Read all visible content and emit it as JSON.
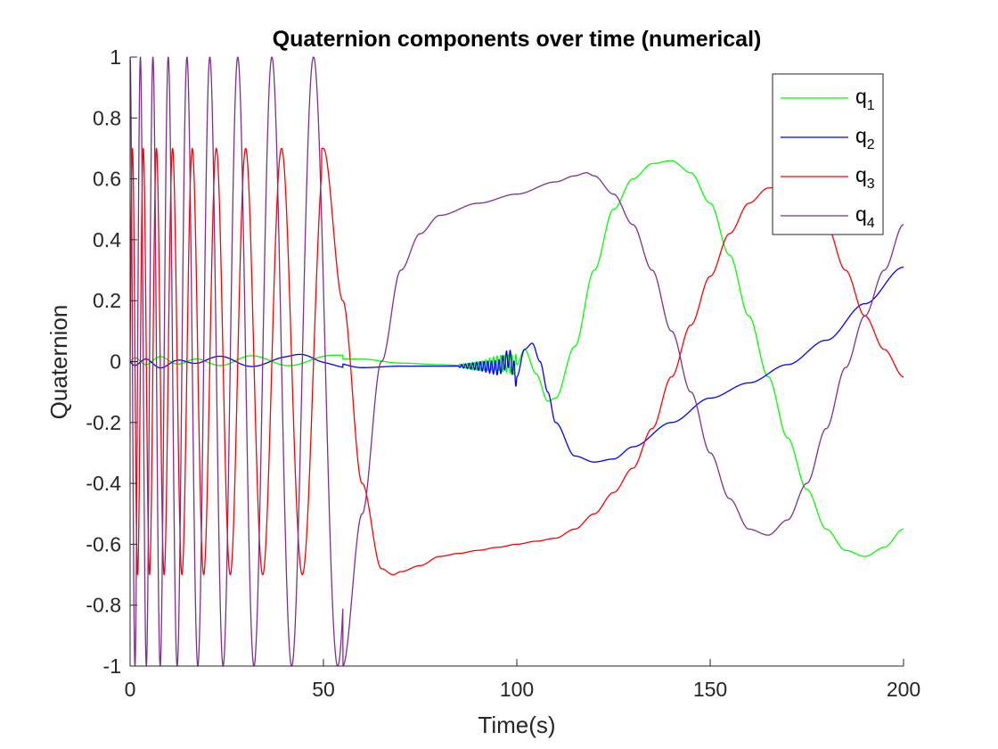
{
  "chart_data": {
    "type": "line",
    "title": "Quaternion components over time (numerical)",
    "xlabel": "Time(s)",
    "ylabel": "Quaternion",
    "xlim": [
      0,
      200
    ],
    "ylim": [
      -1,
      1
    ],
    "xticks": [
      0,
      50,
      100,
      150,
      200
    ],
    "yticks": [
      -1,
      -0.8,
      -0.6,
      -0.4,
      -0.2,
      0,
      0.2,
      0.4,
      0.6,
      0.8,
      1
    ],
    "xtick_labels": [
      "0",
      "50",
      "100",
      "150",
      "200"
    ],
    "ytick_labels": [
      "-1",
      "-0.8",
      "-0.6",
      "-0.4",
      "-0.2",
      "0",
      "0.2",
      "0.4",
      "0.6",
      "0.8",
      "1"
    ],
    "grid": false,
    "legend_position": "top-right",
    "series": [
      {
        "name": "q1",
        "label_base": "q",
        "label_sub": "1",
        "color": "#00ff00",
        "x": [
          0,
          10,
          20,
          30,
          40,
          50,
          60,
          70,
          80,
          90,
          95,
          100,
          102,
          105,
          108,
          110,
          115,
          120,
          125,
          130,
          135,
          140,
          145,
          150,
          155,
          160,
          165,
          170,
          175,
          180,
          185,
          190,
          195,
          200
        ],
        "y": [
          0,
          0.005,
          -0.005,
          0.008,
          -0.002,
          0.01,
          0.008,
          -0.005,
          -0.01,
          -0.015,
          -0.005,
          -0.01,
          0.04,
          -0.04,
          -0.13,
          -0.12,
          0.05,
          0.3,
          0.5,
          0.6,
          0.65,
          0.66,
          0.62,
          0.52,
          0.35,
          0.15,
          -0.05,
          -0.25,
          -0.42,
          -0.55,
          -0.62,
          -0.64,
          -0.61,
          -0.55
        ]
      },
      {
        "name": "q2",
        "label_base": "q",
        "label_sub": "2",
        "color": "#0000ff",
        "x": [
          0,
          10,
          20,
          30,
          40,
          45,
          50,
          60,
          70,
          80,
          90,
          95,
          98,
          100,
          102,
          104,
          106,
          108,
          110,
          115,
          120,
          125,
          130,
          140,
          150,
          160,
          170,
          180,
          190,
          200
        ],
        "y": [
          0,
          -0.01,
          0.01,
          -0.005,
          0.005,
          0.015,
          0.005,
          -0.02,
          -0.015,
          -0.015,
          -0.015,
          -0.02,
          0.01,
          -0.05,
          0.04,
          0.06,
          0.0,
          -0.1,
          -0.2,
          -0.31,
          -0.33,
          -0.32,
          -0.28,
          -0.2,
          -0.12,
          -0.07,
          -0.01,
          0.07,
          0.19,
          0.31
        ]
      },
      {
        "name": "q3",
        "label_base": "q",
        "label_sub": "3",
        "color": "#ff0000",
        "x": [
          0,
          50,
          55,
          60,
          65,
          68,
          70,
          75,
          80,
          85,
          90,
          95,
          100,
          105,
          110,
          115,
          120,
          125,
          130,
          135,
          140,
          145,
          150,
          155,
          160,
          165,
          170,
          175,
          180,
          185,
          190,
          195,
          200
        ],
        "y": [
          0,
          0.7,
          0.2,
          -0.4,
          -0.68,
          -0.7,
          -0.69,
          -0.67,
          -0.64,
          -0.63,
          -0.62,
          -0.61,
          -0.6,
          -0.59,
          -0.58,
          -0.55,
          -0.5,
          -0.43,
          -0.35,
          -0.22,
          -0.05,
          0.12,
          0.28,
          0.42,
          0.52,
          0.57,
          0.58,
          0.55,
          0.45,
          0.3,
          0.15,
          0.04,
          -0.05
        ]
      },
      {
        "name": "q4",
        "label_base": "q",
        "label_sub": "4",
        "color": "#7e2f8e",
        "x": [
          0,
          45,
          50,
          55,
          60,
          65,
          70,
          75,
          80,
          90,
          100,
          110,
          115,
          118,
          120,
          125,
          130,
          135,
          140,
          145,
          150,
          155,
          160,
          165,
          170,
          175,
          180,
          185,
          190,
          195,
          200
        ],
        "y": [
          1,
          1,
          0.2,
          -1,
          -0.5,
          0.0,
          0.3,
          0.42,
          0.48,
          0.52,
          0.55,
          0.59,
          0.61,
          0.62,
          0.61,
          0.55,
          0.45,
          0.3,
          0.1,
          -0.1,
          -0.3,
          -0.45,
          -0.55,
          -0.57,
          -0.52,
          -0.4,
          -0.22,
          -0.02,
          0.15,
          0.3,
          0.45
        ]
      }
    ],
    "oscillation": {
      "q3_amplitude": 0.7,
      "q4_amplitude": 1,
      "q1q2_amplitude": 0.012,
      "until_x": 55
    }
  }
}
